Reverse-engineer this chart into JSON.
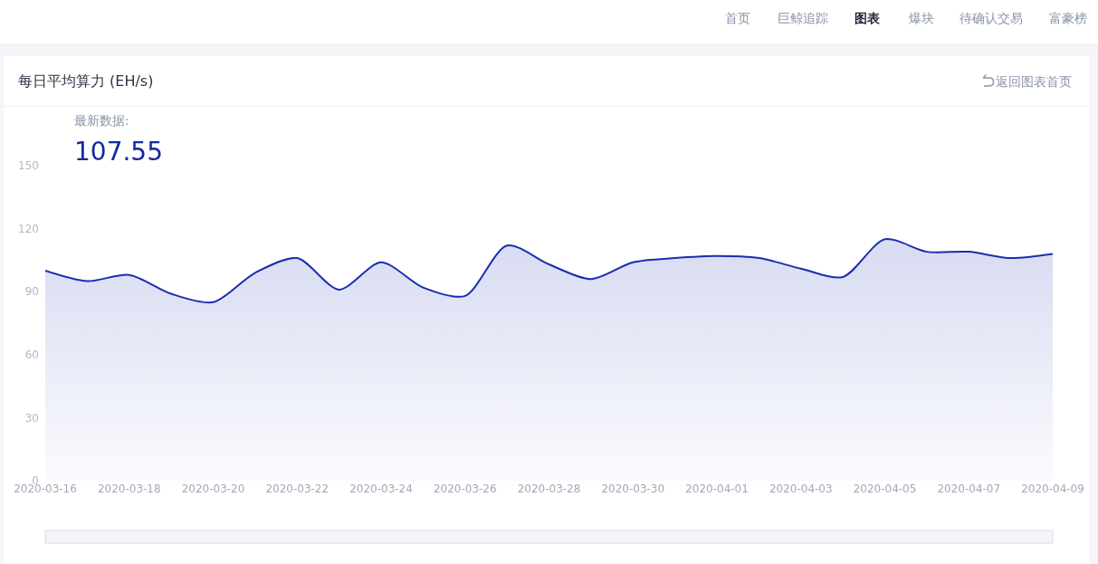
{
  "chart_data": {
    "type": "area",
    "title": "每日平均算力 (EH/s)",
    "annotations": [
      "最新数据:",
      "107.55",
      "返回图表首页",
      "首页",
      "巨鲸追踪",
      "图表",
      "爆块",
      "待确认交易",
      "富豪榜"
    ],
    "x": [
      "2020-03-16",
      "2020-03-17",
      "2020-03-18",
      "2020-03-19",
      "2020-03-20",
      "2020-03-21",
      "2020-03-22",
      "2020-03-23",
      "2020-03-24",
      "2020-03-25",
      "2020-03-26",
      "2020-03-27",
      "2020-03-28",
      "2020-03-29",
      "2020-03-30",
      "2020-03-31",
      "2020-04-01",
      "2020-04-02",
      "2020-04-03",
      "2020-04-04",
      "2020-04-05",
      "2020-04-06",
      "2020-04-07",
      "2020-04-08",
      "2020-04-09"
    ],
    "series": [
      {
        "color": "#1a2db0",
        "values": [
          100,
          95,
          98,
          89,
          85,
          99,
          106,
          91,
          104,
          92,
          88,
          112,
          103,
          96,
          104,
          106,
          107,
          106,
          101,
          97,
          115,
          109,
          109,
          106,
          108
        ]
      }
    ],
    "xlim": [
      "2020-03-16",
      "2020-04-09"
    ],
    "xticks": [
      "2020-03-16",
      "2020-03-18",
      "2020-03-20",
      "2020-03-22",
      "2020-03-24",
      "2020-03-26",
      "2020-03-28",
      "2020-03-30",
      "2020-04-01",
      "2020-04-03",
      "2020-04-05",
      "2020-04-07",
      "2020-04-09"
    ],
    "ylim": [
      0,
      150
    ],
    "yticks": [
      0,
      30,
      60,
      90,
      120,
      150
    ],
    "grid": false,
    "marker": "none",
    "line_style": "solid"
  }
}
